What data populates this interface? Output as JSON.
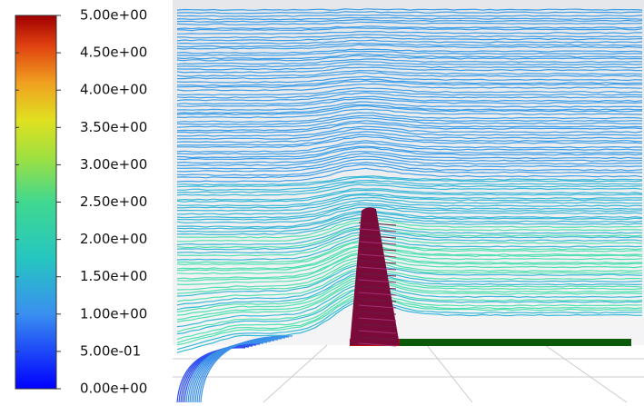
{
  "colorbar": {
    "range": [
      0,
      5
    ],
    "ticks": [
      {
        "value": 5,
        "label": "5.00e+00"
      },
      {
        "value": 4.5,
        "label": "4.50e+00"
      },
      {
        "value": 4,
        "label": "4.00e+00"
      },
      {
        "value": 3.5,
        "label": "3.50e+00"
      },
      {
        "value": 3,
        "label": "3.00e+00"
      },
      {
        "value": 2.5,
        "label": "2.50e+00"
      },
      {
        "value": 2,
        "label": "2.00e+00"
      },
      {
        "value": 1.5,
        "label": "1.50e+00"
      },
      {
        "value": 1,
        "label": "1.00e+00"
      },
      {
        "value": 0.5,
        "label": "5.00e-01"
      },
      {
        "value": 0,
        "label": "0.00e+00"
      }
    ]
  }
}
